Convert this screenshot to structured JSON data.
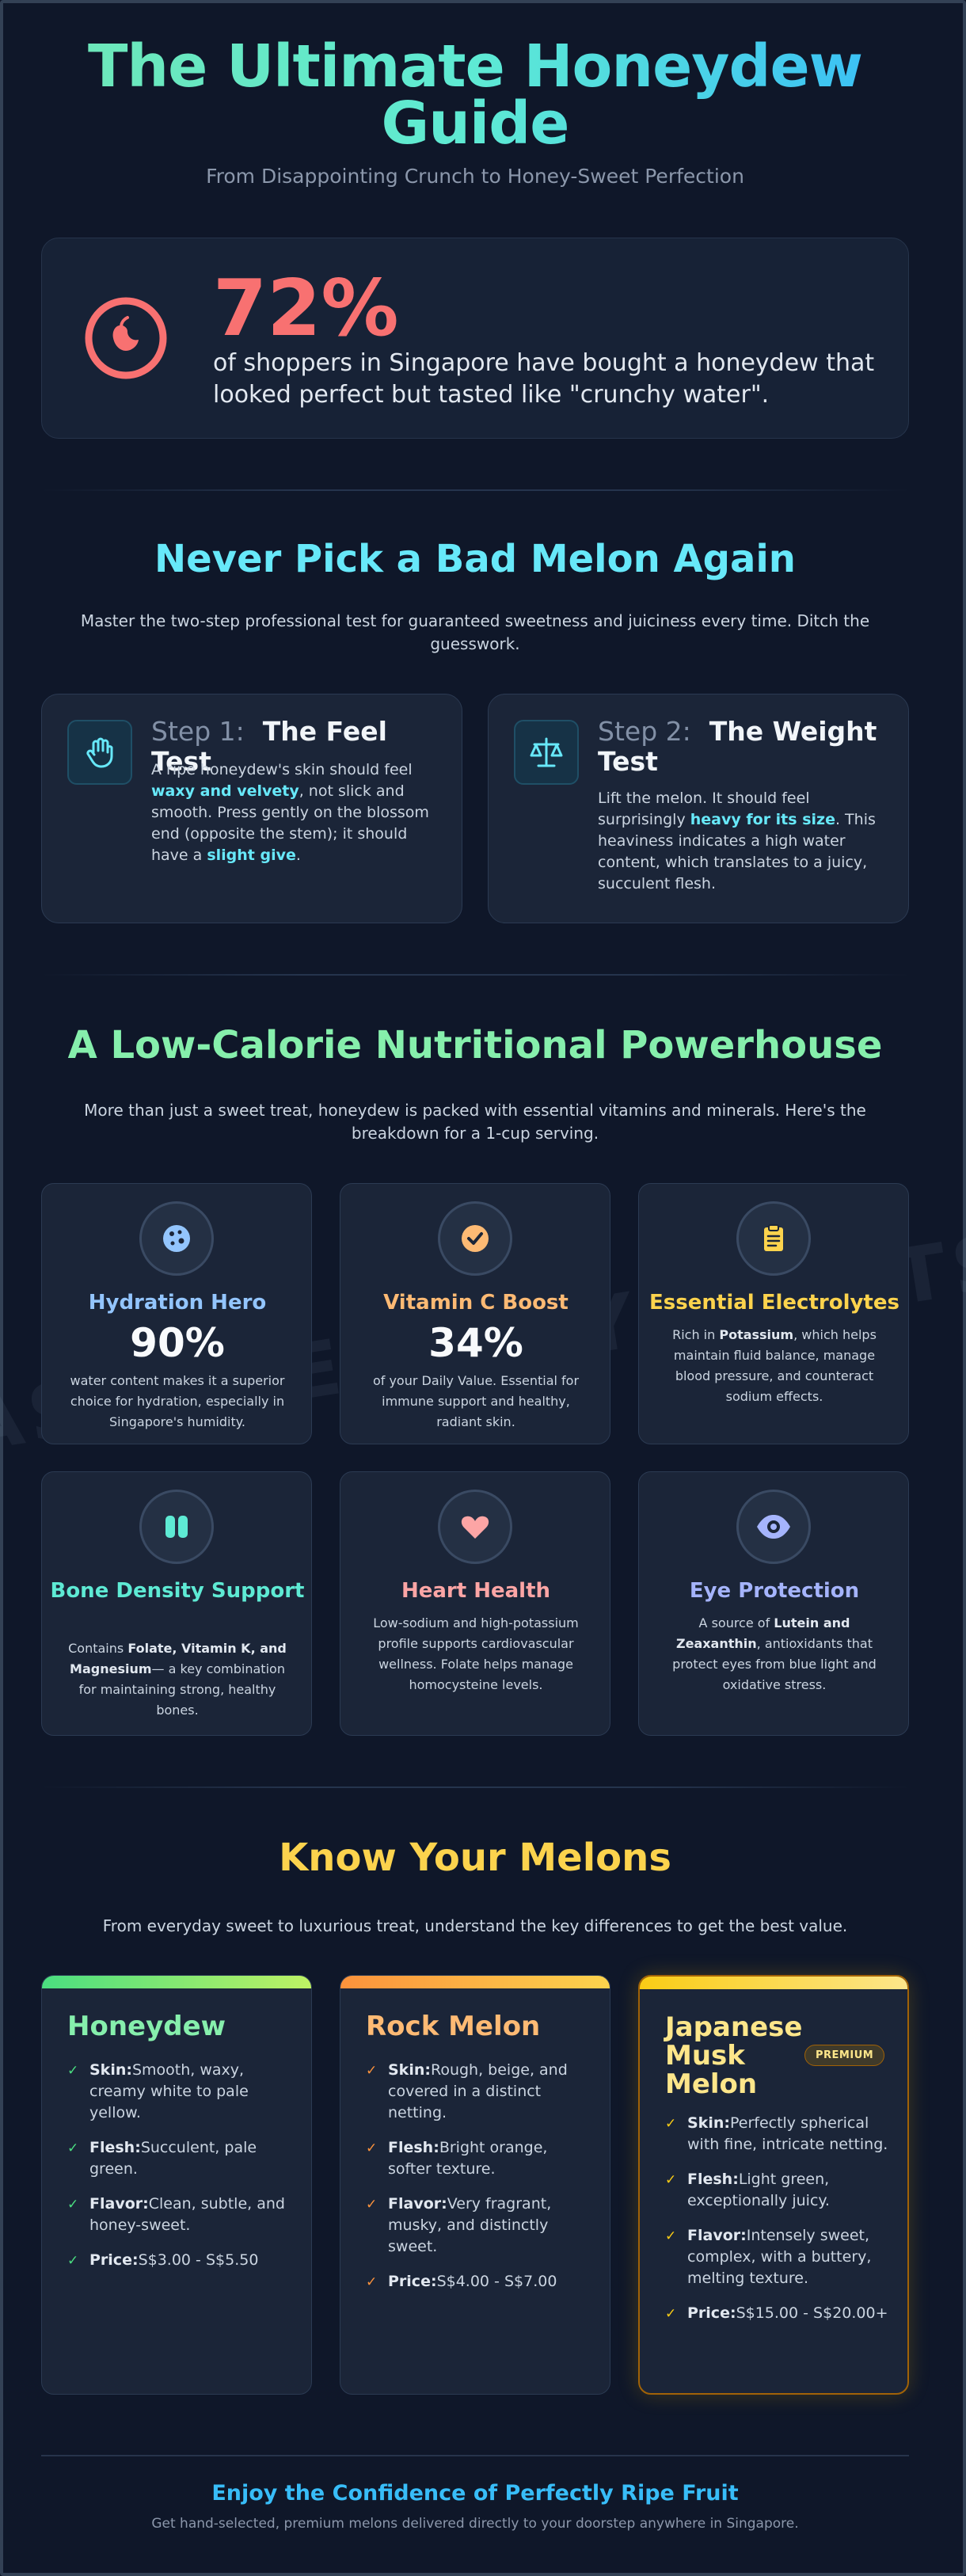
{
  "header": {
    "title": "The Ultimate Honeydew Guide",
    "subtitle": "From Disappointing Crunch to Honey-Sweet Perfection"
  },
  "stat": {
    "value": "72%",
    "text": "of shoppers in Singapore have bought a honeydew that looked perfect but tasted like \"crunchy water\".",
    "icon": "apple-icon"
  },
  "picking": {
    "title": "Never Pick a Bad Melon Again",
    "intro": "Master the two-step professional test for guaranteed sweetness and juiciness every time. Ditch the guesswork.",
    "steps": [
      {
        "icon": "hand-icon",
        "num": "Step 1:",
        "title": "The Feel Test",
        "d1": "A ripe honeydew's skin should feel ",
        "h1": "waxy and velvety",
        "d2": ", not slick and smooth. Press gently on the blossom end (opposite the stem); it should have a ",
        "h2": "slight give",
        "d3": "."
      },
      {
        "icon": "scale-icon",
        "num": "Step 2:",
        "title": "The Weight Test",
        "d1": "Lift the melon. It should feel surprisingly ",
        "h1": "heavy for its size",
        "d2": ". This heaviness indicates a high water content, which translates to a juicy, succulent flesh."
      }
    ]
  },
  "nutrition": {
    "title": "A Low-Calorie Nutritional Powerhouse",
    "intro": "More than just a sweet treat, honeydew is packed with essential vitamins and minerals. Here's the breakdown for a 1-cup serving.",
    "watermark": "ASIA HEALTHY FRUITS",
    "cards": [
      {
        "title": "Hydration Hero",
        "value": "90%",
        "desc": "water content makes it a superior choice for hydration, especially in Singapore's humidity.",
        "icon": "water-drops-icon",
        "color": "#93c5fd"
      },
      {
        "title": "Vitamin C Boost",
        "value": "34%",
        "desc": "of your Daily Value. Essential for immune support and healthy, radiant skin.",
        "icon": "check-badge-icon",
        "color": "#fdba74"
      },
      {
        "title": "Essential Electrolytes",
        "pre": "Rich in ",
        "bold": "Potassium",
        "post": ", which helps maintain fluid balance, manage blood pressure, and counteract sodium effects.",
        "icon": "clipboard-icon",
        "color": "#fcd34d"
      },
      {
        "title": "Bone Density Support",
        "pre": "Contains ",
        "bold": "Folate, Vitamin K, and Magnesium",
        "post": "— a key combination for maintaining strong, healthy bones.",
        "icon": "bone-icon",
        "color": "#5eead4"
      },
      {
        "title": "Heart Health",
        "desc": "Low-sodium and high-potassium profile supports cardiovascular wellness. Folate helps manage homocysteine levels.",
        "icon": "heart-icon",
        "color": "#fca5a5"
      },
      {
        "title": "Eye Protection",
        "pre": "A source of ",
        "bold": "Lutein and Zeaxanthin",
        "post": ", antioxidants that protect eyes from blue light and oxidative stress.",
        "icon": "eye-icon",
        "color": "#a5b4fc"
      }
    ]
  },
  "melons": {
    "title": "Know Your Melons",
    "intro": "From everyday sweet to luxurious treat, understand the key differences to get the best value.",
    "cards": [
      {
        "name": "Honeydew",
        "color": "#86efac",
        "tick_color": "#4ade80",
        "skin_label": "Skin:",
        "skin": "Smooth, waxy, creamy white to pale yellow.",
        "flesh_label": "Flesh:",
        "flesh": "Succulent, pale green.",
        "flavor_label": "Flavor:",
        "flavor": "Clean, subtle, and honey-sweet.",
        "price_label": "Price:",
        "price": "S$3.00 - S$5.50"
      },
      {
        "name": "Rock Melon",
        "color": "#fdba74",
        "tick_color": "#fb923c",
        "skin_label": "Skin:",
        "skin": "Rough, beige, and covered in a distinct netting.",
        "flesh_label": "Flesh:",
        "flesh": "Bright orange, softer texture.",
        "flavor_label": "Flavor:",
        "flavor": "Very fragrant, musky, and distinctly sweet.",
        "price_label": "Price:",
        "price": "S$4.00 - S$7.00"
      },
      {
        "name": "Japanese Musk Melon",
        "color": "#fde68a",
        "tick_color": "#facc15",
        "badge": "PREMIUM",
        "skin_label": "Skin:",
        "skin": "Perfectly spherical with fine, intricate netting.",
        "flesh_label": "Flesh:",
        "flesh": "Light green, exceptionally juicy.",
        "flavor_label": "Flavor:",
        "flavor": "Intensely sweet, complex, with a buttery, melting texture.",
        "price_label": "Price:",
        "price": "S$15.00 - S$20.00+"
      }
    ]
  },
  "footer": {
    "title": "Enjoy the Confidence of Perfectly Ripe Fruit",
    "text": "Get hand-selected, premium melons delivered directly to your doorstep anywhere in Singapore."
  }
}
